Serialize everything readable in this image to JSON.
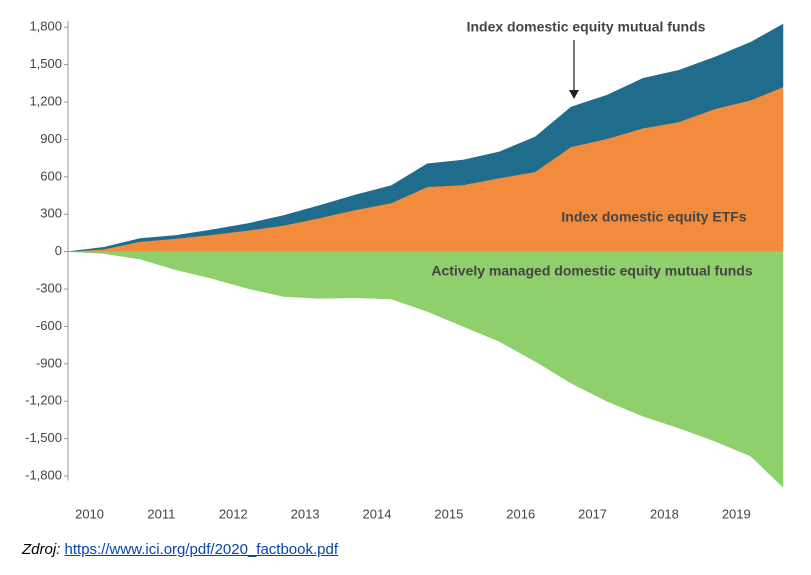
{
  "chart_data": {
    "type": "stacked-area",
    "x": [
      2009.7,
      2010.2,
      2010.7,
      2011.2,
      2011.7,
      2012.2,
      2012.7,
      2013.2,
      2013.7,
      2014.2,
      2014.7,
      2015.2,
      2015.7,
      2016.2,
      2016.7,
      2017.2,
      2017.7,
      2018.2,
      2018.7,
      2019.2,
      2019.65
    ],
    "series": [
      {
        "name": "Index domestic equity ETFs",
        "color": "#f28c3c",
        "stack": "positive",
        "values": [
          0,
          20,
          80,
          105,
          135,
          170,
          210,
          270,
          335,
          390,
          520,
          535,
          590,
          640,
          840,
          905,
          990,
          1040,
          1145,
          1215,
          1320
        ]
      },
      {
        "name": "Index domestic equity mutual funds",
        "color": "#1f6c8c",
        "stack": "positive",
        "values": [
          0,
          15,
          25,
          25,
          40,
          55,
          80,
          100,
          120,
          140,
          185,
          200,
          210,
          280,
          320,
          350,
          400,
          415,
          415,
          465,
          505
        ]
      },
      {
        "name": "Actively managed domestic equity mutual funds",
        "color": "#8fcf6c",
        "stack": "negative",
        "values": [
          0,
          -15,
          -60,
          -145,
          -215,
          -295,
          -360,
          -375,
          -370,
          -380,
          -480,
          -600,
          -720,
          -880,
          -1055,
          -1200,
          -1320,
          -1415,
          -1520,
          -1640,
          -1890
        ]
      }
    ],
    "xlim": [
      2009.7,
      2019.65
    ],
    "xticks": [
      2010,
      2011,
      2012,
      2013,
      2014,
      2015,
      2016,
      2017,
      2018,
      2019
    ],
    "ylim": [
      -1900,
      1850
    ],
    "yticks": [
      {
        "value": -1800,
        "label": "-1,800"
      },
      {
        "value": -1500,
        "label": "-1,500"
      },
      {
        "value": -1200,
        "label": "-1,200"
      },
      -900,
      -600,
      -300,
      0,
      300,
      600,
      900,
      {
        "value": 1200,
        "label": "1,200"
      },
      {
        "value": 1500,
        "label": "1,500"
      },
      {
        "value": 1800,
        "label": "1,800"
      }
    ]
  },
  "source": {
    "prefix": "Zdroj:",
    "link": "https://www.ici.org/pdf/2020_factbook.pdf"
  }
}
